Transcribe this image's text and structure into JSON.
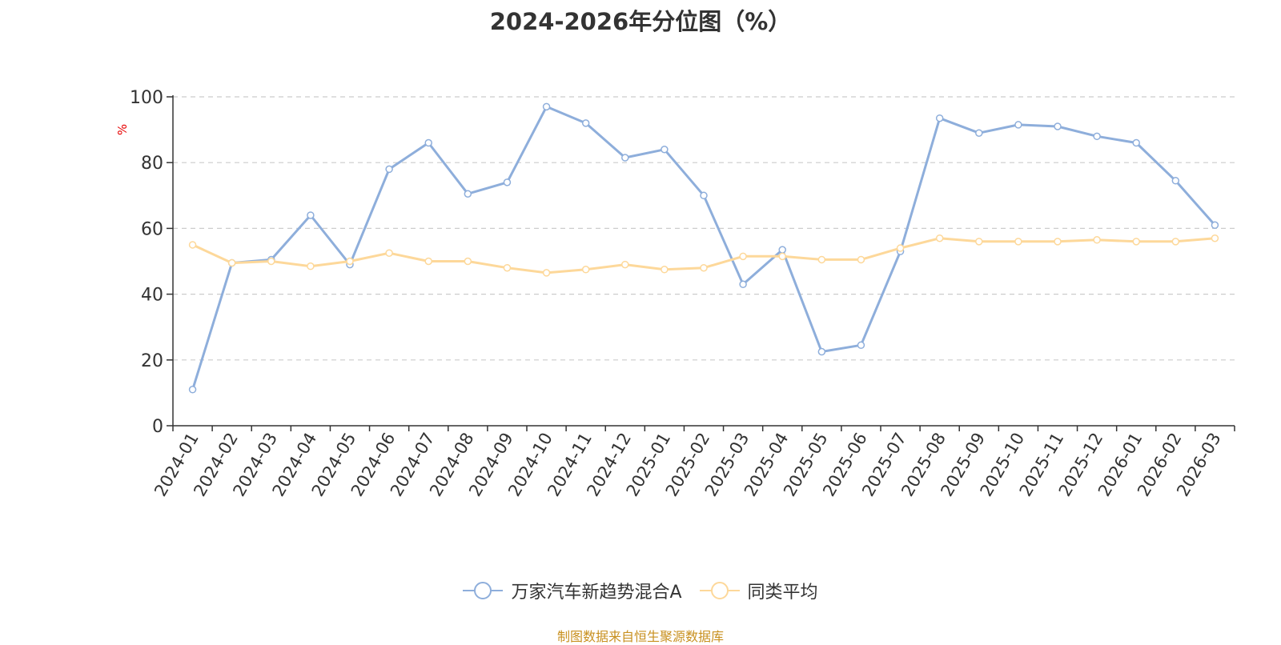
{
  "chart_data": {
    "type": "line",
    "title": "2024-2026年分位图（%）",
    "ylabel": "%",
    "xlabel": "",
    "ylim": [
      0,
      100
    ],
    "yticks": [
      0,
      20,
      40,
      60,
      80,
      100
    ],
    "grid": true,
    "legend_position": "bottom-center",
    "categories": [
      "2024-01",
      "2024-02",
      "2024-03",
      "2024-04",
      "2024-05",
      "2024-06",
      "2024-07",
      "2024-08",
      "2024-09",
      "2024-10",
      "2024-11",
      "2024-12",
      "2025-01",
      "2025-02",
      "2025-03",
      "2025-04",
      "2025-05",
      "2025-06",
      "2025-07",
      "2025-08",
      "2025-09",
      "2025-10",
      "2025-11",
      "2025-12",
      "2026-01",
      "2026-02",
      "2026-03"
    ],
    "series": [
      {
        "name": "万家汽车新趋势混合A",
        "color": "#8eaedb",
        "values": [
          11,
          49.5,
          50.5,
          64,
          49,
          78,
          86,
          70.5,
          74,
          97,
          92,
          81.5,
          84,
          70,
          43,
          53.5,
          22.5,
          24.5,
          53,
          93.5,
          89,
          91.5,
          91,
          88,
          86,
          74.5,
          61
        ]
      },
      {
        "name": "同类平均",
        "color": "#fdd89a",
        "values": [
          55,
          49.5,
          50,
          48.5,
          50,
          52.5,
          50,
          50,
          48,
          46.5,
          47.5,
          49,
          47.5,
          48,
          51.5,
          51.5,
          50.5,
          50.5,
          54,
          57,
          56,
          56,
          56,
          56.5,
          56,
          56,
          57
        ]
      }
    ]
  },
  "source_note": "制图数据来自恒生聚源数据库",
  "colors": {
    "axis": "#333333",
    "grid": "#cccccc",
    "ylabel": "#e60000",
    "source": "#c8901f"
  }
}
